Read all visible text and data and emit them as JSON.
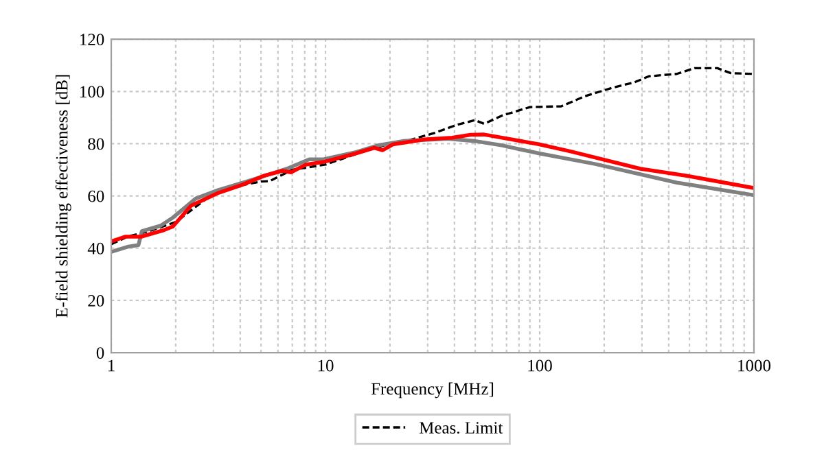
{
  "chart_data": {
    "type": "line",
    "xlabel": "Frequency [MHz]",
    "ylabel": "E-field shielding effectiveness [dB]",
    "log": "x",
    "grid": true,
    "legend": "bottom",
    "xlim": [
      1,
      1000
    ],
    "ylim": [
      0,
      120
    ],
    "yticks": [
      0,
      20,
      40,
      60,
      80,
      100,
      120
    ],
    "xticks": [
      1,
      {
        "value": 2,
        "label": null
      },
      {
        "value": 3,
        "label": null
      },
      {
        "value": 4,
        "label": null
      },
      {
        "value": 5,
        "label": null
      },
      {
        "value": 6,
        "label": null
      },
      {
        "value": 7,
        "label": null
      },
      {
        "value": 8,
        "label": null
      },
      {
        "value": 9,
        "label": null
      },
      10,
      {
        "value": 20,
        "label": null
      },
      {
        "value": 30,
        "label": null
      },
      {
        "value": 40,
        "label": null
      },
      {
        "value": 50,
        "label": null
      },
      {
        "value": 60,
        "label": null
      },
      {
        "value": 70,
        "label": null
      },
      {
        "value": 80,
        "label": null
      },
      {
        "value": 90,
        "label": null
      },
      100,
      {
        "value": 200,
        "label": null
      },
      {
        "value": 300,
        "label": null
      },
      {
        "value": 400,
        "label": null
      },
      {
        "value": 500,
        "label": null
      },
      {
        "value": 600,
        "label": null
      },
      {
        "value": 700,
        "label": null
      },
      {
        "value": 800,
        "label": null
      },
      {
        "value": 900,
        "label": null
      },
      1000
    ],
    "series": [
      {
        "name": "Meas. Limit",
        "color": "#000000",
        "line_style": "dashed",
        "x": [
          1,
          1.2,
          1.5,
          2,
          3,
          4,
          5,
          5.5,
          7,
          10,
          15,
          20,
          25,
          32,
          41,
          50,
          55,
          67,
          90,
          126,
          163,
          218,
          277,
          323,
          436,
          527,
          675,
          780,
          1000
        ],
        "values": [
          41.5,
          44.5,
          46.5,
          50,
          61,
          64,
          65.5,
          65.7,
          70,
          72,
          77,
          80,
          81.5,
          84,
          87.2,
          89,
          87.6,
          90.8,
          94,
          94.3,
          98.2,
          101.4,
          103.5,
          105.8,
          106.7,
          108.9,
          108.9,
          107,
          106.7
        ]
      },
      {
        "color": "#808080",
        "line_style": "solid",
        "x": [
          1,
          1.19,
          1.34,
          1.39,
          1.7,
          1.94,
          2.48,
          3.17,
          4.6,
          6.6,
          8.4,
          9.8,
          13.9,
          17.7,
          23,
          37,
          50,
          67,
          99,
          182,
          437,
          1000
        ],
        "values": [
          38.6,
          40.5,
          41.2,
          46.5,
          48.6,
          51.7,
          59,
          62.3,
          66.3,
          70.4,
          74,
          74,
          76.8,
          79.4,
          81,
          81.9,
          81,
          79.3,
          76.3,
          72.2,
          65.1,
          60.3
        ]
      },
      {
        "color": "#ff0000",
        "line_style": "solid",
        "x": [
          1,
          1.16,
          1.38,
          1.76,
          1.94,
          2.36,
          3.17,
          4.07,
          5.2,
          6.3,
          6.9,
          8.1,
          9.8,
          13.9,
          16.9,
          18.5,
          20.6,
          29,
          39,
          47.5,
          55,
          74,
          99,
          140,
          295,
          480,
          1000
        ],
        "values": [
          42.6,
          44.4,
          44.4,
          46.9,
          48.3,
          56.3,
          61.2,
          64.2,
          67.8,
          69.6,
          69,
          72,
          73,
          76.3,
          78.4,
          77.5,
          79.7,
          81.6,
          82.3,
          83.4,
          83.5,
          81.6,
          79.8,
          77,
          70.4,
          67.8,
          63
        ]
      }
    ]
  }
}
